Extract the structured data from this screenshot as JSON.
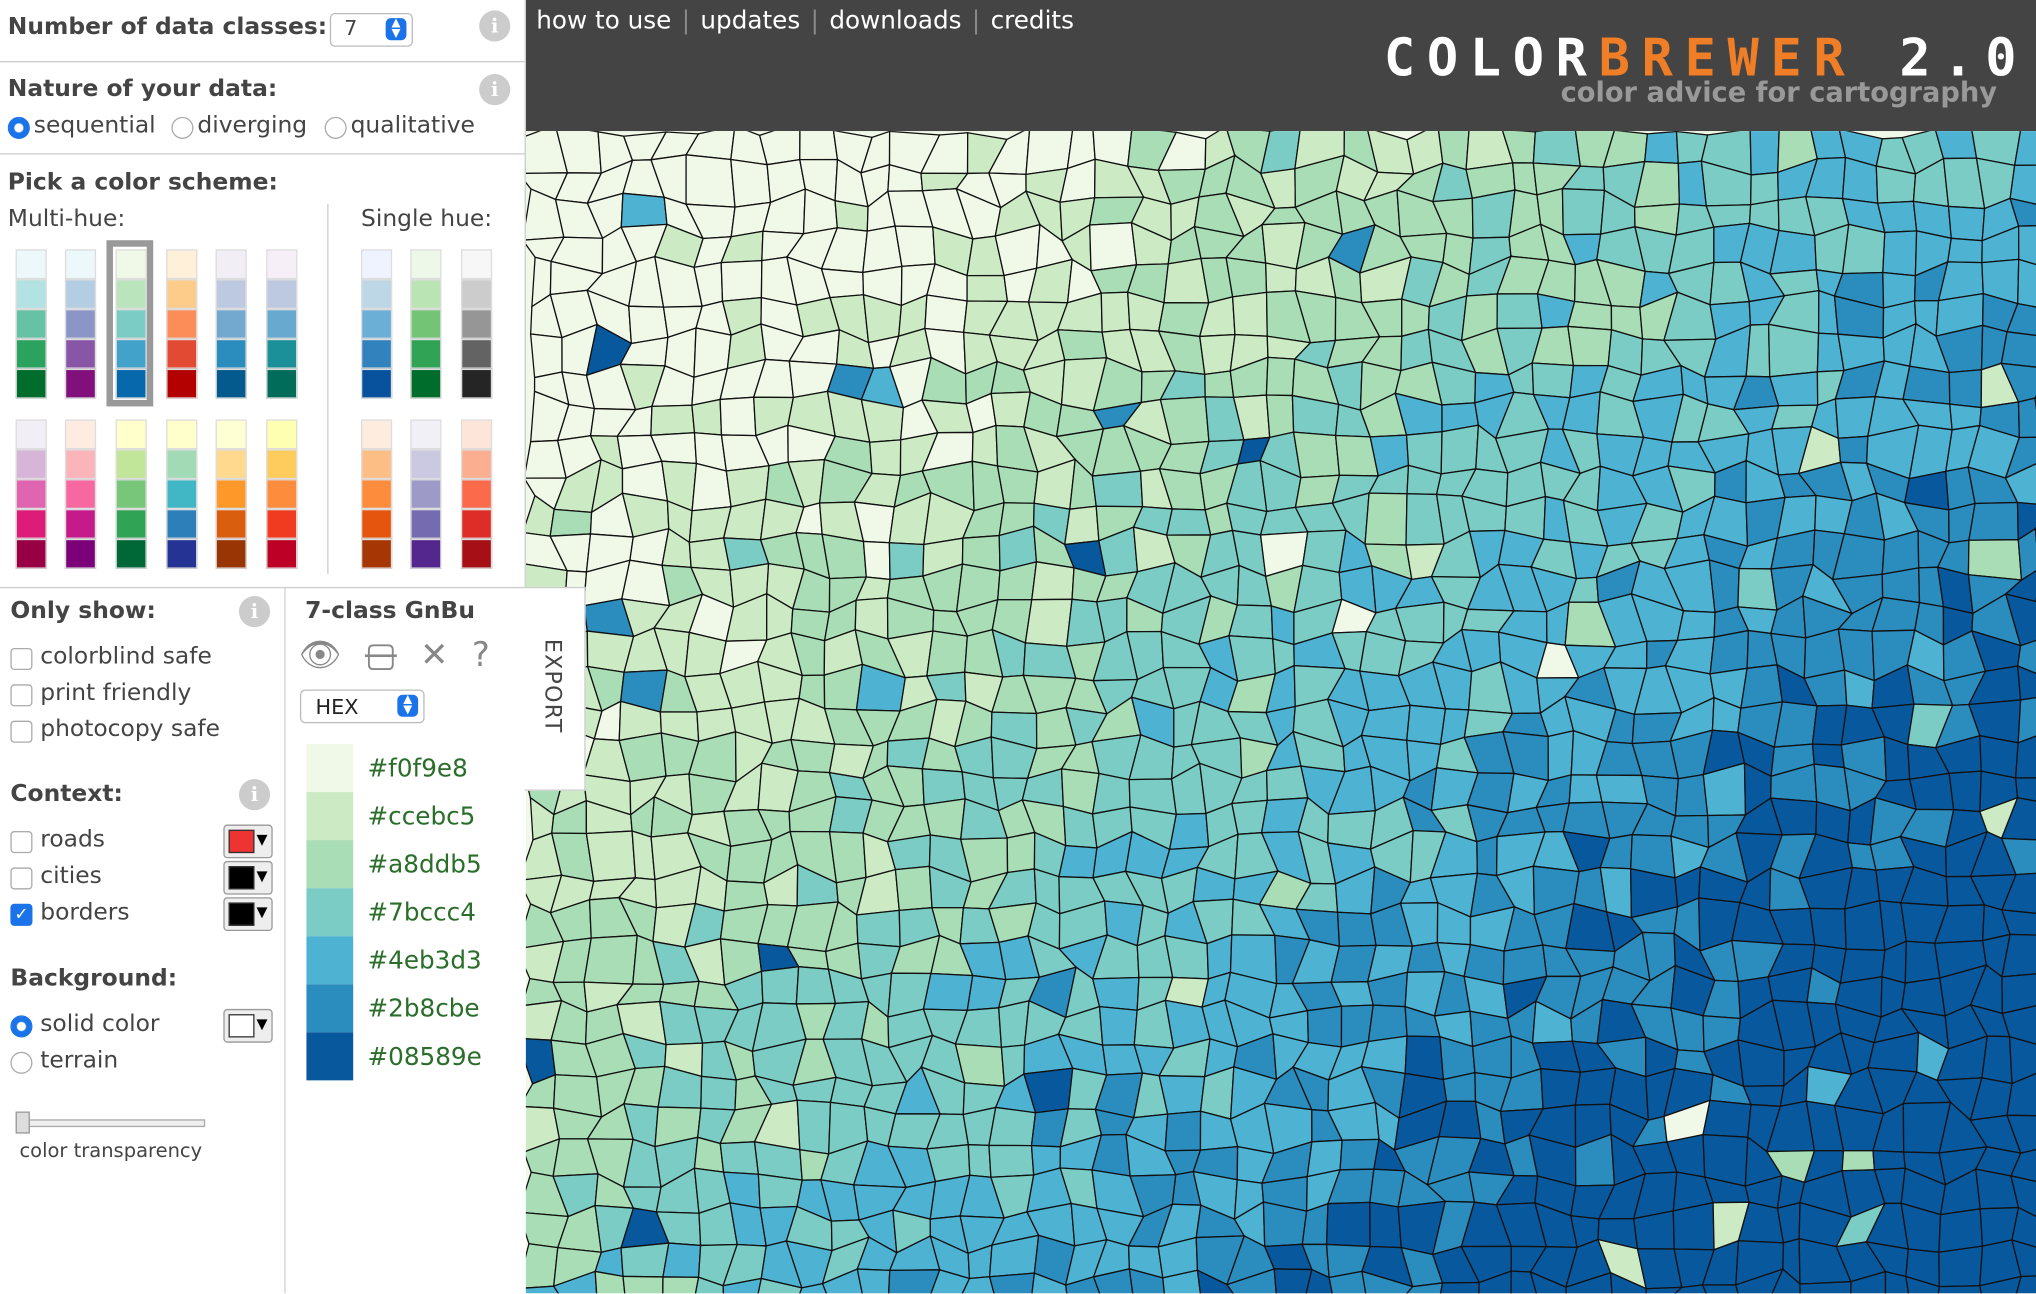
{
  "controls": {
    "classes_label": "Number of data classes:",
    "classes_value": "7",
    "nature_label": "Nature of your data:",
    "nature_options": [
      "sequential",
      "diverging",
      "qualitative"
    ],
    "scheme_label": "Pick a color scheme:",
    "multi_hue": "Multi-hue:",
    "single_hue": "Single hue:"
  },
  "multi_hue_schemes": [
    [
      "#edf8fb",
      "#b2e2e2",
      "#66c2a4",
      "#2ca25f",
      "#006d2c"
    ],
    [
      "#edf8fb",
      "#b3cde3",
      "#8c96c6",
      "#8856a7",
      "#810f7c"
    ],
    [
      "#f0f9e8",
      "#bae4bc",
      "#7bccc4",
      "#43a2ca",
      "#0868ac"
    ],
    [
      "#fef0d9",
      "#fdcc8a",
      "#fc8d59",
      "#e34a33",
      "#b30000"
    ],
    [
      "#f1eef6",
      "#bdc9e1",
      "#74a9cf",
      "#2b8cbe",
      "#045a8d"
    ],
    [
      "#f6eff7",
      "#bdc9e1",
      "#67a9cf",
      "#1c9099",
      "#016c59"
    ],
    [
      "#f1eef6",
      "#d7b5d8",
      "#df65b0",
      "#dd1c77",
      "#980043"
    ],
    [
      "#feebe2",
      "#fbb4b9",
      "#f768a1",
      "#c51b8a",
      "#7a0177"
    ],
    [
      "#ffffcc",
      "#c2e699",
      "#78c679",
      "#31a354",
      "#006837"
    ],
    [
      "#ffffcc",
      "#a1dab4",
      "#41b6c4",
      "#2c7fb8",
      "#253494"
    ],
    [
      "#ffffd4",
      "#fed98e",
      "#fe9929",
      "#d95f0e",
      "#993404"
    ],
    [
      "#ffffb2",
      "#fecc5c",
      "#fd8d3c",
      "#f03b20",
      "#bd0026"
    ]
  ],
  "single_hue_schemes": [
    [
      "#eff3ff",
      "#bdd7e7",
      "#6baed6",
      "#3182bd",
      "#08519c"
    ],
    [
      "#edf8e9",
      "#bae4b3",
      "#74c476",
      "#31a354",
      "#006d2c"
    ],
    [
      "#f7f7f7",
      "#cccccc",
      "#969696",
      "#636363",
      "#252525"
    ],
    [
      "#feedde",
      "#fdbe85",
      "#fd8d3c",
      "#e6550d",
      "#a63603"
    ],
    [
      "#f2f0f7",
      "#cbc9e2",
      "#9e9ac8",
      "#756bb1",
      "#54278f"
    ],
    [
      "#fee5d9",
      "#fcae91",
      "#fb6a4a",
      "#de2d26",
      "#a50f15"
    ]
  ],
  "selected_scheme": 2,
  "filters": {
    "title": "Only show:",
    "options": [
      "colorblind safe",
      "print friendly",
      "photocopy safe"
    ]
  },
  "context": {
    "title": "Context:",
    "options": [
      "roads",
      "cities",
      "borders"
    ]
  },
  "background": {
    "title": "Background:",
    "options": [
      "solid color",
      "terrain"
    ],
    "slider_label": "color transparency"
  },
  "scheme": {
    "title": "7-class GnBu",
    "format": "HEX",
    "export": "EXPORT",
    "colors": [
      "#f0f9e8",
      "#ccebc5",
      "#a8ddb5",
      "#7bccc4",
      "#4eb3d3",
      "#2b8cbe",
      "#08589e"
    ]
  },
  "nav": [
    "how to use",
    "updates",
    "downloads",
    "credits"
  ],
  "header": {
    "title_a": "COLOR",
    "title_b": "BREWER",
    "title_c": "2.0",
    "subtitle": "color advice for cartography"
  }
}
